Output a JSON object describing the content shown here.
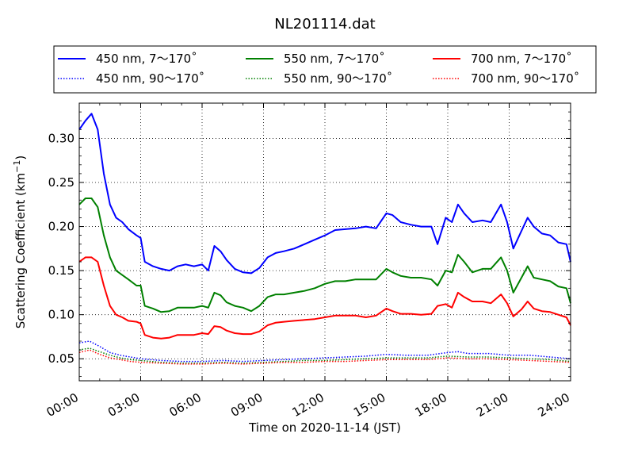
{
  "chart_data": {
    "type": "line",
    "title": "NL201114.dat",
    "xlabel": "Time on 2020-11-14 (JST)",
    "ylabel_main": "Scattering Coefficient (km",
    "ylabel_sup": "−1",
    "ylabel_end": ")",
    "xlim": [
      0,
      24
    ],
    "ylim": [
      0.025,
      0.34
    ],
    "x_ticks": [
      {
        "value": 0,
        "label": "00:00"
      },
      {
        "value": 3,
        "label": "03:00"
      },
      {
        "value": 6,
        "label": "06:00"
      },
      {
        "value": 9,
        "label": "09:00"
      },
      {
        "value": 12,
        "label": "12:00"
      },
      {
        "value": 15,
        "label": "15:00"
      },
      {
        "value": 18,
        "label": "18:00"
      },
      {
        "value": 21,
        "label": "21:00"
      },
      {
        "value": 24,
        "label": "24:00"
      }
    ],
    "y_ticks": [
      {
        "value": 0.05,
        "label": "0.05"
      },
      {
        "value": 0.1,
        "label": "0.10"
      },
      {
        "value": 0.15,
        "label": "0.15"
      },
      {
        "value": 0.2,
        "label": "0.20"
      },
      {
        "value": 0.25,
        "label": "0.25"
      },
      {
        "value": 0.3,
        "label": "0.30"
      }
    ],
    "grid": true,
    "legend_position": "top",
    "series": [
      {
        "name": "450 nm, 7～170˚",
        "color": "#0000ff",
        "style": "solid",
        "points": [
          [
            0,
            0.31
          ],
          [
            0.3,
            0.32
          ],
          [
            0.6,
            0.328
          ],
          [
            0.9,
            0.31
          ],
          [
            1.2,
            0.26
          ],
          [
            1.5,
            0.225
          ],
          [
            1.8,
            0.21
          ],
          [
            2.1,
            0.205
          ],
          [
            2.4,
            0.197
          ],
          [
            2.8,
            0.19
          ],
          [
            3.0,
            0.187
          ],
          [
            3.2,
            0.16
          ],
          [
            3.6,
            0.155
          ],
          [
            4.0,
            0.152
          ],
          [
            4.4,
            0.15
          ],
          [
            4.8,
            0.155
          ],
          [
            5.2,
            0.157
          ],
          [
            5.6,
            0.155
          ],
          [
            6.0,
            0.157
          ],
          [
            6.3,
            0.15
          ],
          [
            6.6,
            0.178
          ],
          [
            6.9,
            0.172
          ],
          [
            7.2,
            0.162
          ],
          [
            7.6,
            0.152
          ],
          [
            8.0,
            0.148
          ],
          [
            8.4,
            0.147
          ],
          [
            8.8,
            0.153
          ],
          [
            9.2,
            0.165
          ],
          [
            9.6,
            0.17
          ],
          [
            10.0,
            0.172
          ],
          [
            10.5,
            0.175
          ],
          [
            11.0,
            0.18
          ],
          [
            11.5,
            0.185
          ],
          [
            12.0,
            0.19
          ],
          [
            12.5,
            0.196
          ],
          [
            13.0,
            0.197
          ],
          [
            13.5,
            0.198
          ],
          [
            14.0,
            0.2
          ],
          [
            14.5,
            0.198
          ],
          [
            15.0,
            0.215
          ],
          [
            15.3,
            0.213
          ],
          [
            15.7,
            0.205
          ],
          [
            16.2,
            0.202
          ],
          [
            16.7,
            0.2
          ],
          [
            17.2,
            0.2
          ],
          [
            17.5,
            0.18
          ],
          [
            17.9,
            0.21
          ],
          [
            18.2,
            0.205
          ],
          [
            18.5,
            0.225
          ],
          [
            18.8,
            0.215
          ],
          [
            19.2,
            0.205
          ],
          [
            19.7,
            0.207
          ],
          [
            20.1,
            0.205
          ],
          [
            20.6,
            0.225
          ],
          [
            20.9,
            0.205
          ],
          [
            21.2,
            0.175
          ],
          [
            21.6,
            0.195
          ],
          [
            21.9,
            0.21
          ],
          [
            22.2,
            0.2
          ],
          [
            22.6,
            0.192
          ],
          [
            23.0,
            0.19
          ],
          [
            23.4,
            0.182
          ],
          [
            23.8,
            0.18
          ],
          [
            24.0,
            0.16
          ]
        ]
      },
      {
        "name": "550 nm, 7～170˚",
        "color": "#008000",
        "style": "solid",
        "points": [
          [
            0,
            0.225
          ],
          [
            0.3,
            0.232
          ],
          [
            0.6,
            0.232
          ],
          [
            0.9,
            0.222
          ],
          [
            1.2,
            0.19
          ],
          [
            1.5,
            0.165
          ],
          [
            1.8,
            0.15
          ],
          [
            2.1,
            0.145
          ],
          [
            2.4,
            0.14
          ],
          [
            2.8,
            0.133
          ],
          [
            3.0,
            0.133
          ],
          [
            3.2,
            0.11
          ],
          [
            3.6,
            0.107
          ],
          [
            4.0,
            0.103
          ],
          [
            4.4,
            0.104
          ],
          [
            4.8,
            0.108
          ],
          [
            5.2,
            0.108
          ],
          [
            5.6,
            0.108
          ],
          [
            6.0,
            0.11
          ],
          [
            6.3,
            0.108
          ],
          [
            6.6,
            0.125
          ],
          [
            6.9,
            0.122
          ],
          [
            7.2,
            0.114
          ],
          [
            7.6,
            0.11
          ],
          [
            8.0,
            0.108
          ],
          [
            8.4,
            0.104
          ],
          [
            8.8,
            0.11
          ],
          [
            9.2,
            0.12
          ],
          [
            9.6,
            0.123
          ],
          [
            10.0,
            0.123
          ],
          [
            10.5,
            0.125
          ],
          [
            11.0,
            0.127
          ],
          [
            11.5,
            0.13
          ],
          [
            12.0,
            0.135
          ],
          [
            12.5,
            0.138
          ],
          [
            13.0,
            0.138
          ],
          [
            13.5,
            0.14
          ],
          [
            14.0,
            0.14
          ],
          [
            14.5,
            0.14
          ],
          [
            15.0,
            0.152
          ],
          [
            15.3,
            0.148
          ],
          [
            15.7,
            0.144
          ],
          [
            16.2,
            0.142
          ],
          [
            16.7,
            0.142
          ],
          [
            17.2,
            0.14
          ],
          [
            17.5,
            0.133
          ],
          [
            17.9,
            0.15
          ],
          [
            18.2,
            0.148
          ],
          [
            18.5,
            0.168
          ],
          [
            18.8,
            0.16
          ],
          [
            19.2,
            0.148
          ],
          [
            19.7,
            0.152
          ],
          [
            20.1,
            0.152
          ],
          [
            20.6,
            0.165
          ],
          [
            20.9,
            0.15
          ],
          [
            21.2,
            0.125
          ],
          [
            21.6,
            0.142
          ],
          [
            21.9,
            0.155
          ],
          [
            22.2,
            0.142
          ],
          [
            22.6,
            0.14
          ],
          [
            23.0,
            0.138
          ],
          [
            23.4,
            0.132
          ],
          [
            23.8,
            0.13
          ],
          [
            24.0,
            0.113
          ]
        ]
      },
      {
        "name": "700 nm, 7～170˚",
        "color": "#ff0000",
        "style": "solid",
        "points": [
          [
            0,
            0.16
          ],
          [
            0.3,
            0.165
          ],
          [
            0.6,
            0.165
          ],
          [
            0.9,
            0.16
          ],
          [
            1.2,
            0.133
          ],
          [
            1.5,
            0.11
          ],
          [
            1.8,
            0.1
          ],
          [
            2.1,
            0.097
          ],
          [
            2.4,
            0.093
          ],
          [
            2.8,
            0.092
          ],
          [
            3.0,
            0.09
          ],
          [
            3.2,
            0.077
          ],
          [
            3.6,
            0.074
          ],
          [
            4.0,
            0.073
          ],
          [
            4.4,
            0.074
          ],
          [
            4.8,
            0.077
          ],
          [
            5.2,
            0.077
          ],
          [
            5.6,
            0.077
          ],
          [
            6.0,
            0.079
          ],
          [
            6.3,
            0.078
          ],
          [
            6.6,
            0.087
          ],
          [
            6.9,
            0.086
          ],
          [
            7.2,
            0.082
          ],
          [
            7.6,
            0.079
          ],
          [
            8.0,
            0.078
          ],
          [
            8.4,
            0.078
          ],
          [
            8.8,
            0.081
          ],
          [
            9.2,
            0.088
          ],
          [
            9.6,
            0.091
          ],
          [
            10.0,
            0.092
          ],
          [
            10.5,
            0.093
          ],
          [
            11.0,
            0.094
          ],
          [
            11.5,
            0.095
          ],
          [
            12.0,
            0.097
          ],
          [
            12.5,
            0.099
          ],
          [
            13.0,
            0.099
          ],
          [
            13.5,
            0.099
          ],
          [
            14.0,
            0.097
          ],
          [
            14.5,
            0.099
          ],
          [
            15.0,
            0.107
          ],
          [
            15.3,
            0.104
          ],
          [
            15.7,
            0.101
          ],
          [
            16.2,
            0.101
          ],
          [
            16.7,
            0.1
          ],
          [
            17.2,
            0.101
          ],
          [
            17.5,
            0.11
          ],
          [
            17.9,
            0.112
          ],
          [
            18.2,
            0.108
          ],
          [
            18.5,
            0.125
          ],
          [
            18.8,
            0.12
          ],
          [
            19.2,
            0.115
          ],
          [
            19.7,
            0.115
          ],
          [
            20.1,
            0.113
          ],
          [
            20.6,
            0.123
          ],
          [
            20.9,
            0.113
          ],
          [
            21.2,
            0.098
          ],
          [
            21.6,
            0.106
          ],
          [
            21.9,
            0.115
          ],
          [
            22.2,
            0.107
          ],
          [
            22.6,
            0.104
          ],
          [
            23.0,
            0.103
          ],
          [
            23.4,
            0.1
          ],
          [
            23.8,
            0.097
          ],
          [
            24.0,
            0.088
          ]
        ]
      },
      {
        "name": "450 nm, 90～170˚",
        "color": "#0000ff",
        "style": "dotted",
        "points": [
          [
            0,
            0.068
          ],
          [
            0.5,
            0.07
          ],
          [
            1.0,
            0.064
          ],
          [
            1.5,
            0.057
          ],
          [
            2.0,
            0.054
          ],
          [
            2.5,
            0.052
          ],
          [
            3.0,
            0.05
          ],
          [
            4.0,
            0.048
          ],
          [
            5.0,
            0.047
          ],
          [
            6.0,
            0.047
          ],
          [
            7.0,
            0.048
          ],
          [
            8.0,
            0.047
          ],
          [
            9.0,
            0.048
          ],
          [
            10.0,
            0.049
          ],
          [
            11.0,
            0.05
          ],
          [
            12.0,
            0.051
          ],
          [
            13.0,
            0.052
          ],
          [
            14.0,
            0.053
          ],
          [
            15.0,
            0.055
          ],
          [
            16.0,
            0.054
          ],
          [
            17.0,
            0.054
          ],
          [
            18.0,
            0.057
          ],
          [
            18.5,
            0.058
          ],
          [
            19.0,
            0.056
          ],
          [
            20.0,
            0.056
          ],
          [
            21.0,
            0.054
          ],
          [
            22.0,
            0.054
          ],
          [
            23.0,
            0.052
          ],
          [
            24.0,
            0.05
          ]
        ]
      },
      {
        "name": "550 nm, 90～170˚",
        "color": "#008000",
        "style": "dotted",
        "points": [
          [
            0,
            0.06
          ],
          [
            0.5,
            0.062
          ],
          [
            1.0,
            0.058
          ],
          [
            1.5,
            0.054
          ],
          [
            2.0,
            0.051
          ],
          [
            2.5,
            0.049
          ],
          [
            3.0,
            0.048
          ],
          [
            4.0,
            0.046
          ],
          [
            5.0,
            0.045
          ],
          [
            6.0,
            0.045
          ],
          [
            7.0,
            0.046
          ],
          [
            8.0,
            0.045
          ],
          [
            9.0,
            0.046
          ],
          [
            10.0,
            0.047
          ],
          [
            11.0,
            0.048
          ],
          [
            12.0,
            0.048
          ],
          [
            13.0,
            0.049
          ],
          [
            14.0,
            0.05
          ],
          [
            15.0,
            0.051
          ],
          [
            16.0,
            0.051
          ],
          [
            17.0,
            0.051
          ],
          [
            18.0,
            0.053
          ],
          [
            19.0,
            0.052
          ],
          [
            20.0,
            0.052
          ],
          [
            21.0,
            0.051
          ],
          [
            22.0,
            0.05
          ],
          [
            23.0,
            0.049
          ],
          [
            24.0,
            0.047
          ]
        ]
      },
      {
        "name": "700 nm, 90～170˚",
        "color": "#ff0000",
        "style": "dotted",
        "points": [
          [
            0,
            0.057
          ],
          [
            0.5,
            0.06
          ],
          [
            1.0,
            0.055
          ],
          [
            1.5,
            0.051
          ],
          [
            2.0,
            0.049
          ],
          [
            2.5,
            0.047
          ],
          [
            3.0,
            0.046
          ],
          [
            4.0,
            0.045
          ],
          [
            5.0,
            0.044
          ],
          [
            6.0,
            0.044
          ],
          [
            7.0,
            0.045
          ],
          [
            8.0,
            0.044
          ],
          [
            9.0,
            0.045
          ],
          [
            10.0,
            0.046
          ],
          [
            11.0,
            0.046
          ],
          [
            12.0,
            0.047
          ],
          [
            13.0,
            0.047
          ],
          [
            14.0,
            0.048
          ],
          [
            15.0,
            0.049
          ],
          [
            16.0,
            0.049
          ],
          [
            17.0,
            0.049
          ],
          [
            18.0,
            0.051
          ],
          [
            19.0,
            0.05
          ],
          [
            20.0,
            0.05
          ],
          [
            21.0,
            0.049
          ],
          [
            22.0,
            0.048
          ],
          [
            23.0,
            0.047
          ],
          [
            24.0,
            0.046
          ]
        ]
      }
    ]
  }
}
